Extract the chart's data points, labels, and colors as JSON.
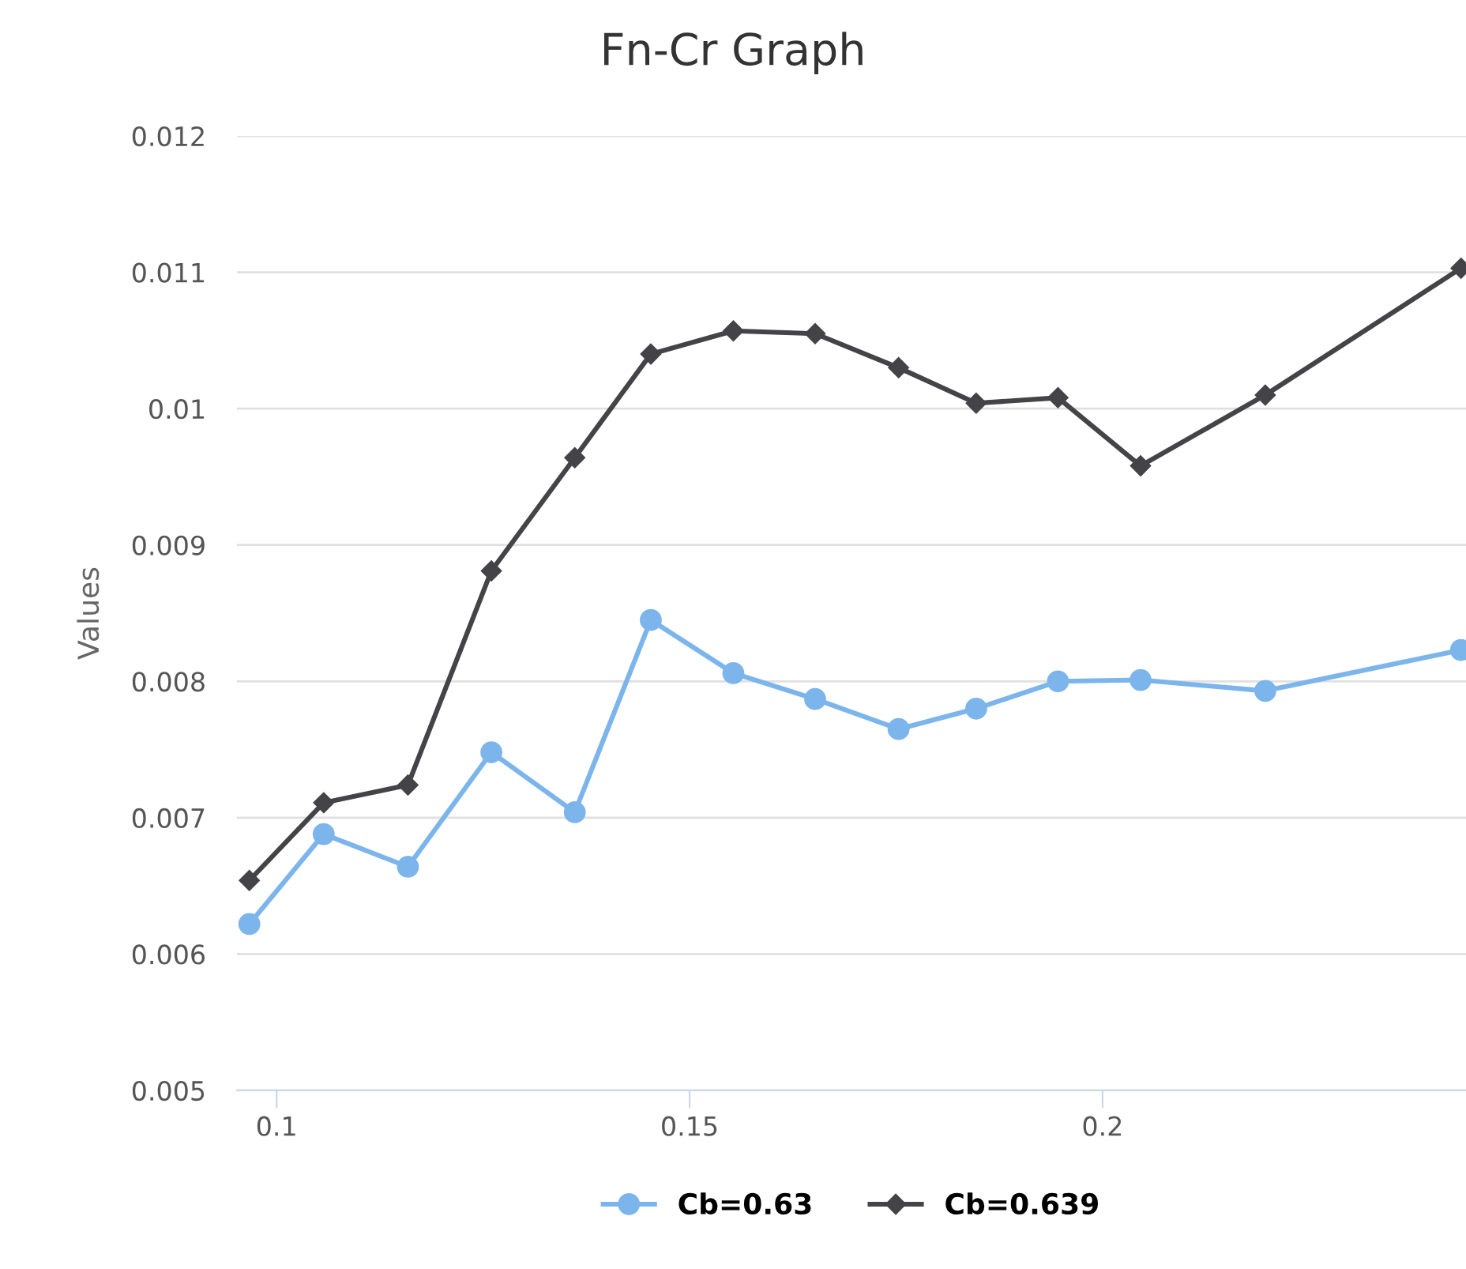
{
  "chart_data": {
    "type": "line",
    "title": "Fn-Cr Graph",
    "ylabel": "Values",
    "xlim": [
      0.0952,
      0.244
    ],
    "xticks": [
      0.1,
      0.15,
      0.2
    ],
    "ylim": [
      0.005,
      0.012
    ],
    "yticks": [
      0.005,
      0.006,
      0.007,
      0.008,
      0.009,
      0.01,
      0.011,
      0.012
    ],
    "grid": "y",
    "legend": "bottom",
    "line_style": "solid",
    "x": [
      0.0967,
      0.1057,
      0.1159,
      0.126,
      0.1361,
      0.1453,
      0.1553,
      0.1652,
      0.1753,
      0.1847,
      0.1946,
      0.2046,
      0.2197,
      0.2434
    ],
    "series": [
      {
        "name": "Cb=0.63",
        "color": "#7cb5ec",
        "marker": "circle",
        "values": [
          0.00622,
          0.00688,
          0.00664,
          0.00748,
          0.00704,
          0.00845,
          0.00806,
          0.00787,
          0.00765,
          0.0078,
          0.008,
          0.00801,
          0.00793,
          0.00823
        ]
      },
      {
        "name": "Cb=0.639",
        "color": "#434348",
        "marker": "diamond",
        "values": [
          0.00654,
          0.00711,
          0.00724,
          0.00881,
          0.00964,
          0.0104,
          0.01057,
          0.01055,
          0.0103,
          0.01004,
          0.01008,
          0.00958,
          0.0101,
          0.01103
        ]
      }
    ]
  }
}
